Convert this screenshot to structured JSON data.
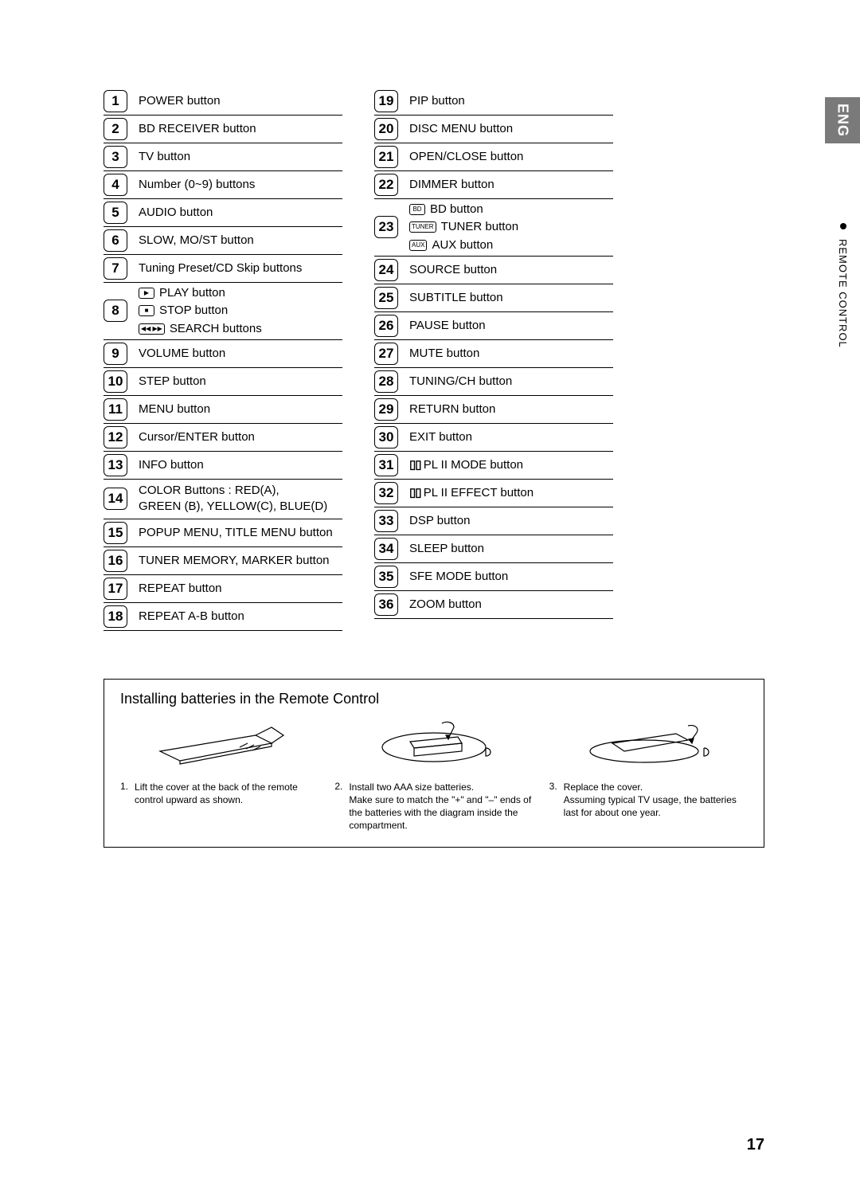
{
  "side": {
    "lang": "ENG",
    "section": "REMOTE CONTROL"
  },
  "page_number": "17",
  "left": [
    {
      "n": "1",
      "text": "POWER button"
    },
    {
      "n": "2",
      "text": "BD RECEIVER button"
    },
    {
      "n": "3",
      "text": "TV button"
    },
    {
      "n": "4",
      "text": "Number (0~9) buttons"
    },
    {
      "n": "5",
      "text": "AUDIO button"
    },
    {
      "n": "6",
      "text": "SLOW, MO/ST button"
    },
    {
      "n": "7",
      "text": "Tuning Preset/CD Skip buttons"
    },
    {
      "n": "8",
      "lines": [
        {
          "icon": "▶",
          "label": "PLAY button"
        },
        {
          "icon": "■",
          "label": "STOP button"
        },
        {
          "icon": "◀◀ ▶▶",
          "label": "SEARCH buttons"
        }
      ],
      "tall": true
    },
    {
      "n": "9",
      "text": "VOLUME button"
    },
    {
      "n": "10",
      "text": "STEP button"
    },
    {
      "n": "11",
      "text": "MENU button"
    },
    {
      "n": "12",
      "text": "Cursor/ENTER button"
    },
    {
      "n": "13",
      "text": "INFO button"
    },
    {
      "n": "14",
      "text": "COLOR Buttons : RED(A),\nGREEN (B), YELLOW(C), BLUE(D)",
      "mid": true
    },
    {
      "n": "15",
      "text": "POPUP MENU, TITLE MENU button"
    },
    {
      "n": "16",
      "text": "TUNER MEMORY, MARKER button"
    },
    {
      "n": "17",
      "text": "REPEAT button"
    },
    {
      "n": "18",
      "text": "REPEAT A-B button"
    }
  ],
  "right": [
    {
      "n": "19",
      "text": "PIP button"
    },
    {
      "n": "20",
      "text": "DISC MENU button"
    },
    {
      "n": "21",
      "text": "OPEN/CLOSE button"
    },
    {
      "n": "22",
      "text": "DIMMER button"
    },
    {
      "n": "23",
      "lines": [
        {
          "icon": "BD",
          "label": "BD button"
        },
        {
          "icon": "TUNER",
          "label": "TUNER button"
        },
        {
          "icon": "AUX",
          "label": "AUX button"
        }
      ],
      "tall": true
    },
    {
      "n": "24",
      "text": "SOURCE button"
    },
    {
      "n": "25",
      "text": "SUBTITLE button"
    },
    {
      "n": "26",
      "text": "PAUSE button"
    },
    {
      "n": "27",
      "text": "MUTE button"
    },
    {
      "n": "28",
      "text": "TUNING/CH button"
    },
    {
      "n": "29",
      "text": "RETURN button"
    },
    {
      "n": "30",
      "text": "EXIT button"
    },
    {
      "n": "31",
      "prefix": "▯▯",
      "text": "PL II MODE button"
    },
    {
      "n": "32",
      "prefix": "▯▯",
      "text": "PL II EFFECT button"
    },
    {
      "n": "33",
      "text": "DSP button"
    },
    {
      "n": "34",
      "text": "SLEEP button"
    },
    {
      "n": "35",
      "text": "SFE MODE button"
    },
    {
      "n": "36",
      "text": "ZOOM button"
    }
  ],
  "install": {
    "title": "Installing batteries in the Remote Control",
    "steps": [
      {
        "n": "1.",
        "head": "Lift the cover at the back of the remote control upward as shown.",
        "sub": ""
      },
      {
        "n": "2.",
        "head": "Install two AAA size batteries.",
        "sub": "Make sure to match the \"+\" and \"–\" ends of the batteries with the diagram inside the compartment."
      },
      {
        "n": "3.",
        "head": "Replace the cover.",
        "sub": "Assuming typical TV usage, the batteries last for about one year."
      }
    ]
  }
}
